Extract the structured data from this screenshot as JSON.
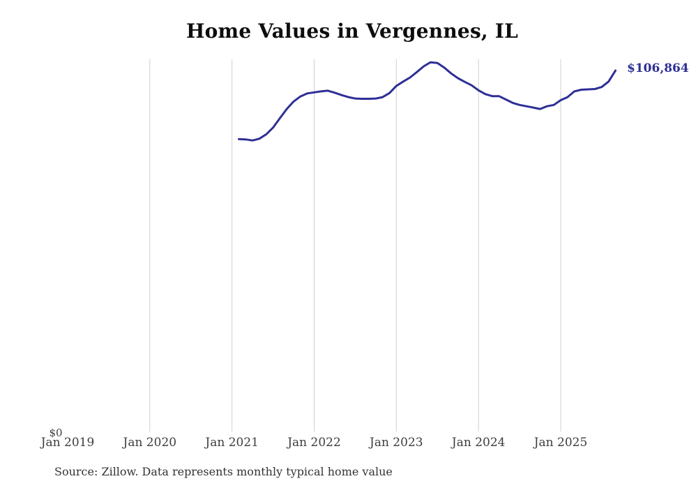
{
  "chart_data": {
    "type": "line",
    "title": "Home Values in Vergennes, IL",
    "x_tick_labels": [
      "Jan 2019",
      "Jan 2020",
      "Jan 2021",
      "Jan 2022",
      "Jan 2023",
      "Jan 2024",
      "Jan 2025"
    ],
    "y_zero_label": "$0",
    "end_value_label": "$106,864",
    "end_value": 106864,
    "ylim": [
      0,
      115000
    ],
    "xlim_months": [
      "Jan 2019",
      "Oct 2025"
    ],
    "grid": "vertical-only",
    "legend": "none",
    "line_color": "#2e2f96",
    "grid_color": "#cfcfcf",
    "series": [
      {
        "name": "Monthly typical home value",
        "months": [
          "Feb 2021",
          "Mar 2021",
          "Apr 2021",
          "May 2021",
          "Jun 2021",
          "Jul 2021",
          "Aug 2021",
          "Sep 2021",
          "Oct 2021",
          "Nov 2021",
          "Dec 2021",
          "Jan 2022",
          "Feb 2022",
          "Mar 2022",
          "Apr 2022",
          "May 2022",
          "Jun 2022",
          "Jul 2022",
          "Aug 2022",
          "Sep 2022",
          "Oct 2022",
          "Nov 2022",
          "Dec 2022",
          "Jan 2023",
          "Feb 2023",
          "Mar 2023",
          "Apr 2023",
          "May 2023",
          "Jun 2023",
          "Jul 2023",
          "Aug 2023",
          "Sep 2023",
          "Oct 2023",
          "Nov 2023",
          "Dec 2023",
          "Jan 2024",
          "Feb 2024",
          "Mar 2024",
          "Apr 2024",
          "May 2024",
          "Jun 2024",
          "Jul 2024",
          "Aug 2024",
          "Sep 2024",
          "Oct 2024",
          "Nov 2024",
          "Dec 2024",
          "Jan 2025",
          "Feb 2025",
          "Mar 2025",
          "Apr 2025",
          "May 2025",
          "Jun 2025",
          "Jul 2025",
          "Aug 2025",
          "Sep 2025"
        ],
        "values": [
          86600,
          86500,
          86200,
          86700,
          88000,
          90000,
          92800,
          95500,
          97700,
          99200,
          100100,
          100400,
          100700,
          100900,
          100300,
          99600,
          99000,
          98600,
          98500,
          98500,
          98600,
          99000,
          100200,
          102300,
          103600,
          104800,
          106400,
          108100,
          109300,
          109100,
          107700,
          106000,
          104600,
          103500,
          102500,
          101000,
          99900,
          99300,
          99300,
          98300,
          97300,
          96700,
          96300,
          95900,
          95500,
          96300,
          96700,
          98100,
          99000,
          100700,
          101200,
          101300,
          101400,
          102000,
          103600,
          106864
        ]
      }
    ]
  },
  "source_note": "Source: Zillow. Data represents monthly typical home value"
}
